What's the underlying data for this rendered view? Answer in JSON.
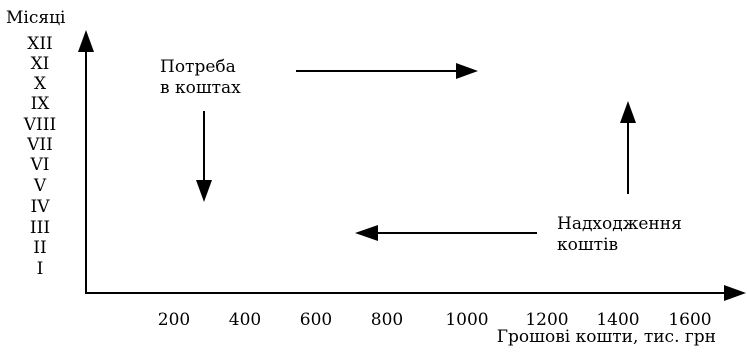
{
  "y_axis": {
    "title": "Місяці",
    "labels": [
      "XII",
      "XI",
      "X",
      "IX",
      "VIII",
      "VII",
      "VI",
      "V",
      "IV",
      "III",
      "II",
      "I"
    ]
  },
  "x_axis": {
    "title": "Грошові кошти, тис. грн",
    "tick_labels": [
      "200",
      "400",
      "600",
      "800",
      "1000",
      "1200",
      "1400",
      "1600"
    ]
  },
  "labels": {
    "need_line1": "Потреба",
    "need_line2": "в коштах",
    "income_line1": "Надходження",
    "income_line2": "коштів"
  }
}
